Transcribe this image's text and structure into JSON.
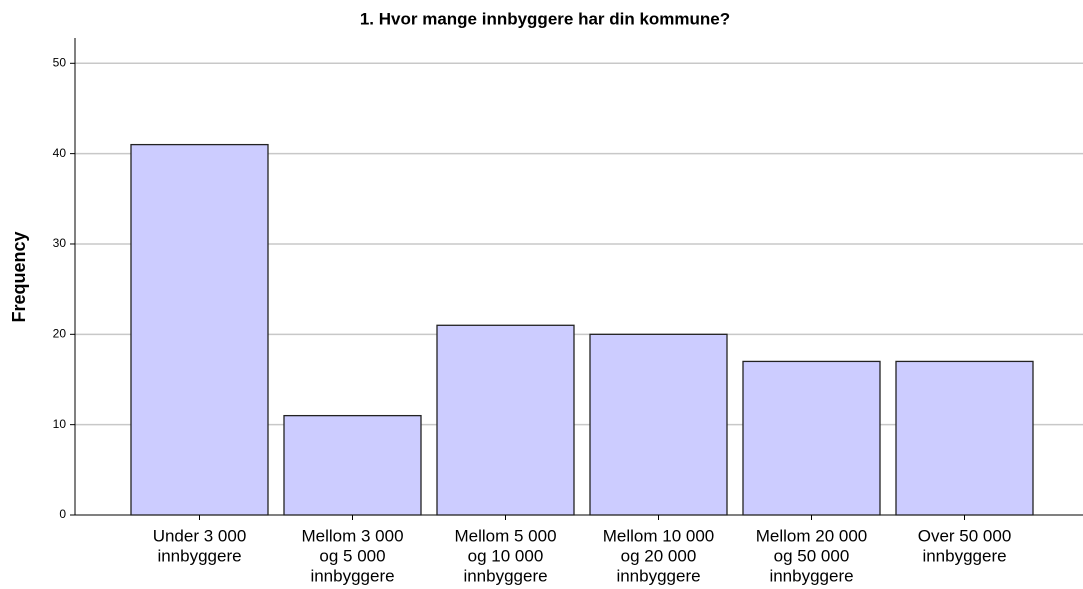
{
  "chart_data": {
    "type": "bar",
    "title": "1. Hvor mange innbyggere har din kommune?",
    "y_label": "Frequency",
    "categories": [
      [
        "Under 3 000",
        "innbyggere"
      ],
      [
        "Mellom 3 000",
        "og 5 000",
        "innbyggere"
      ],
      [
        "Mellom 5 000",
        "og 10 000",
        "innbyggere"
      ],
      [
        "Mellom 10 000",
        "og 20 000",
        "innbyggere"
      ],
      [
        "Mellom 20 000",
        "og 50 000",
        "innbyggere"
      ],
      [
        "Over 50 000",
        "innbyggere"
      ]
    ],
    "values": [
      41,
      11,
      21,
      20,
      17,
      17
    ],
    "color": "#ccccff",
    "ylim": [
      0,
      52.8
    ],
    "yticks": [
      0,
      10,
      20,
      30,
      40,
      50
    ],
    "grid": true
  }
}
